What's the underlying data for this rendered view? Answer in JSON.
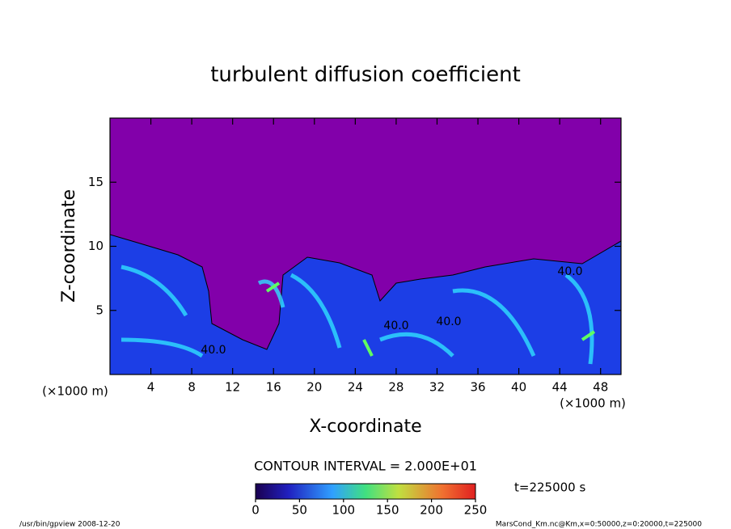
{
  "chart_data": {
    "type": "contour",
    "title": "turbulent diffusion coefficient",
    "xlabel": "X-coordinate",
    "ylabel": "Z-coordinate",
    "x_unit": "(×1000 m)",
    "x_unit_right": "(×1000 m)",
    "xlim": [
      0,
      50
    ],
    "ylim": [
      0,
      20
    ],
    "xticks": [
      4,
      8,
      12,
      16,
      20,
      24,
      28,
      32,
      36,
      40,
      44,
      48
    ],
    "yticks": [
      5,
      10,
      15
    ],
    "contour_labels": [
      "40.0",
      "40.0",
      "40.0",
      "40.0"
    ],
    "contour_interval": "CONTOUR INTERVAL = 2.000E+01",
    "colorbar": {
      "lim": [
        0,
        250
      ],
      "ticks": [
        0,
        50,
        100,
        150,
        200,
        250
      ]
    },
    "time_label": "t=225000 s",
    "footer_left": "/usr/bin/gpview  2008-12-20",
    "footer_right": "MarsCond_Km.nc@Km,x=0:50000,z=0:20000,t=225000"
  }
}
